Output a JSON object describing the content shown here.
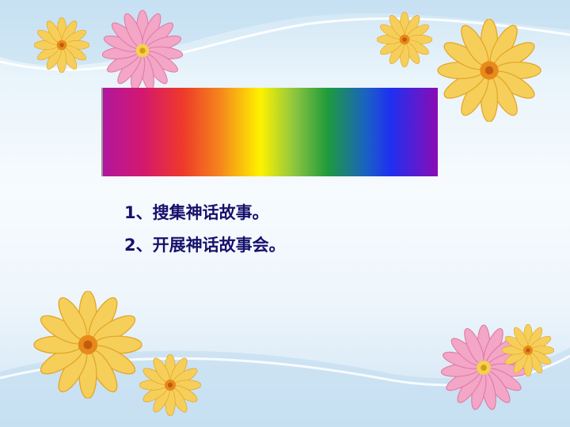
{
  "slide": {
    "items": [
      {
        "text": "1、搜集神话故事。"
      },
      {
        "text": "2、开展神话故事会。"
      }
    ]
  },
  "colors": {
    "text": "#15116b",
    "background_top": "#cfe6f5",
    "background_bottom": "#cfe4f3",
    "rainbow": [
      "#b0179e",
      "#d4186e",
      "#ee3a2a",
      "#f5861c",
      "#fef200",
      "#8fc63f",
      "#1f9b3c",
      "#1a5fc8",
      "#1f2ff0",
      "#8a0cb5"
    ]
  },
  "decorations": {
    "flowers": [
      "yellow-flower-icon",
      "pink-flower-icon",
      "yellow-flower-icon",
      "yellow-flower-icon",
      "yellow-flower-icon",
      "yellow-flower-icon",
      "pink-flower-icon",
      "yellow-flower-icon"
    ]
  }
}
